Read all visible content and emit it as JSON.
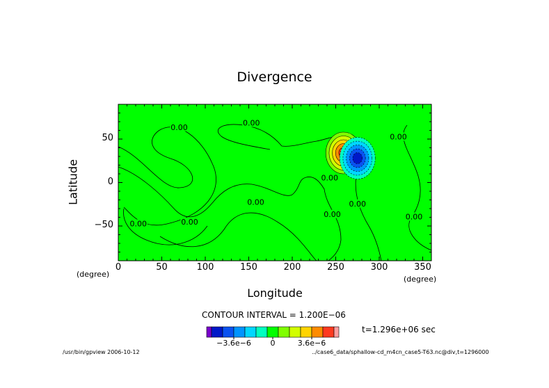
{
  "chart_data": {
    "type": "heatmap",
    "title": "Divergence",
    "xlabel": "Longitude",
    "ylabel": "Latitude",
    "x_unit": "(degree)",
    "y_unit": "(degree)",
    "xlim": [
      0,
      360
    ],
    "ylim": [
      -90,
      90
    ],
    "xticks": [
      "0",
      "50",
      "100",
      "150",
      "200",
      "250",
      "300",
      "350"
    ],
    "yticks": [
      "50",
      "0",
      "−50"
    ],
    "grid": false,
    "field_background": 0.0,
    "contour_labels": [
      {
        "text": "0.00",
        "lon": 70,
        "lat": 63
      },
      {
        "text": "0.00",
        "lon": 153,
        "lat": 68
      },
      {
        "text": "0.00",
        "lon": 158,
        "lat": -23
      },
      {
        "text": "0.00",
        "lon": 23,
        "lat": -48
      },
      {
        "text": "0.00",
        "lon": 82,
        "lat": -46
      },
      {
        "text": "0.00",
        "lon": 243,
        "lat": 5
      },
      {
        "text": "0.00",
        "lon": 246,
        "lat": -37
      },
      {
        "text": "0.00",
        "lon": 275,
        "lat": -25
      },
      {
        "text": "0.00",
        "lon": 322,
        "lat": 52
      },
      {
        "text": "0.00",
        "lon": 340,
        "lat": -40
      }
    ],
    "anomalies": [
      {
        "sign": "positive",
        "lon": 259,
        "lat": 34,
        "peak": 7.2e-06
      },
      {
        "sign": "negative",
        "lon": 275,
        "lat": 28,
        "peak": -6e-06
      }
    ],
    "contour_interval": "CONTOUR INTERVAL = 1.200E−06",
    "time": "t=1.296e+06 sec",
    "colorbar": {
      "colors": [
        "#7a00cc",
        "#0018c8",
        "#0a52f0",
        "#0094ff",
        "#00d6ff",
        "#00ffc0",
        "#00ff00",
        "#80ff00",
        "#d2ff00",
        "#ffd400",
        "#ff8c00",
        "#ff3a20",
        "#ff9ea0"
      ],
      "labels": [
        "−3.6e−6",
        "0",
        "3.6e−6"
      ]
    }
  },
  "footer": {
    "left": "/usr/bin/gpview  2006-10-12",
    "right": "../case6_data/sphallow-cd_m4cn_case5-T63.nc@div,t=1296000"
  }
}
